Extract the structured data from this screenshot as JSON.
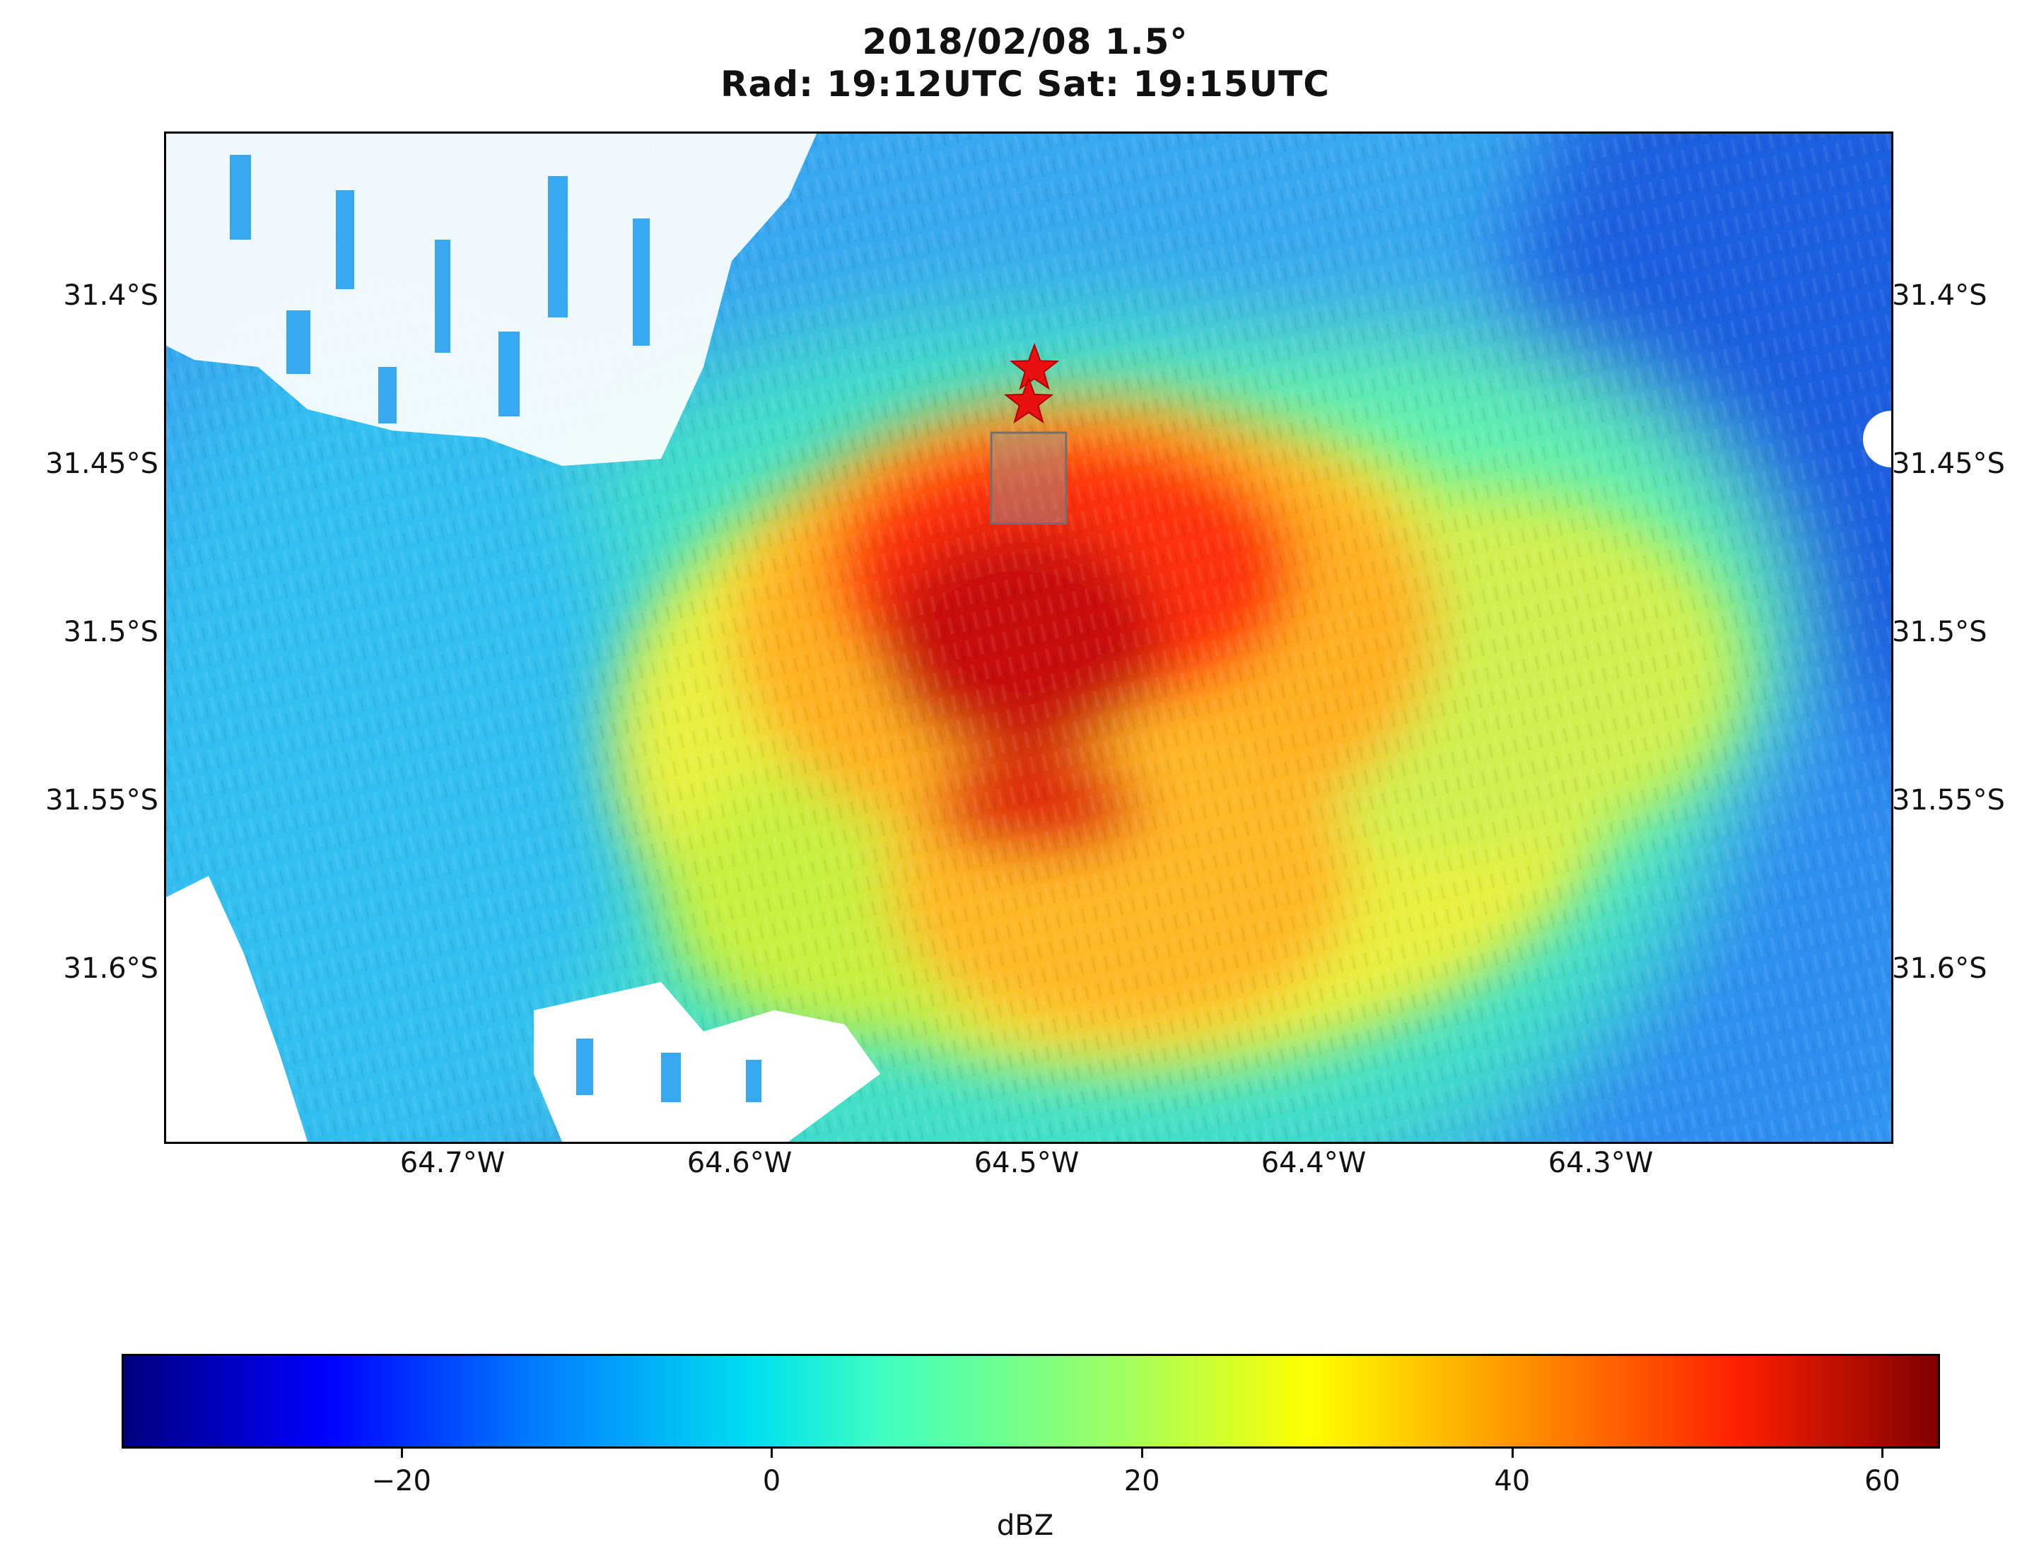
{
  "title": {
    "line1": "2018/02/08  1.5°",
    "line2": "Rad: 19:12UTC Sat: 19:15UTC"
  },
  "map": {
    "lon_range": [
      -64.8,
      -64.2
    ],
    "lat_range": [
      -31.65,
      -31.35
    ],
    "y_ticks": [
      "31.4°S",
      "31.45°S",
      "31.5°S",
      "31.55°S",
      "31.6°S"
    ],
    "x_ticks": [
      "64.7°W",
      "64.6°W",
      "64.5°W",
      "64.4°W",
      "64.3°W"
    ],
    "markers": [
      {
        "type": "star",
        "color": "#e81010",
        "lon": -64.498,
        "lat": -31.42
      },
      {
        "type": "star",
        "color": "#e81010",
        "lon": -64.5,
        "lat": -31.43
      }
    ],
    "box": {
      "lon_range": [
        -64.513,
        -64.487
      ],
      "lat_range": [
        -31.466,
        -31.439
      ],
      "color": "#808080"
    }
  },
  "colorbar": {
    "label": "dBZ",
    "range": [
      -35,
      63
    ],
    "ticks": [
      "−20",
      "0",
      "20",
      "40",
      "60"
    ],
    "tick_values": [
      -20,
      0,
      20,
      40,
      60
    ]
  }
}
